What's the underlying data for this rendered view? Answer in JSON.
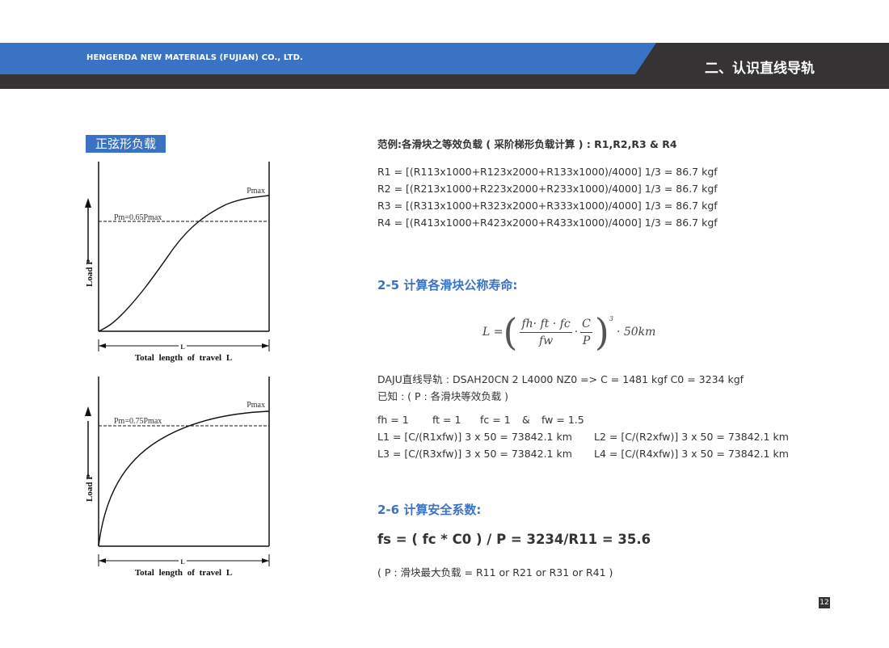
{
  "header": {
    "company": "HENGERDA NEW MATERIALS (FUJIAN) CO., LTD.",
    "section_title": "二、认识直线导轨",
    "colors": {
      "blue": "#3a73c4",
      "dark": "#353334"
    }
  },
  "left": {
    "tag": "正弦形负载",
    "charts": [
      {
        "curve": "sine",
        "pmax_label": "Pmax",
        "pm_label": "Pm=0.65Pmax",
        "y_label": "Load P",
        "dim_label": "L",
        "x_label": "Total length of travel L"
      },
      {
        "curve": "concave",
        "pmax_label": "Pmax",
        "pm_label": "Pm=0.75Pmax",
        "y_label": "Load P",
        "dim_label": "L",
        "x_label": "Total length of travel L"
      }
    ]
  },
  "right": {
    "example_title": "范例:各滑块之等效负载 ( 采阶梯形负载计算 ) : R1,R2,R3 & R4",
    "r_lines": [
      "R1 = [(R113x1000+R123x2000+R133x1000)/4000] 1/3 = 86.7 kgf",
      "R2 = [(R213x1000+R223x2000+R233x1000)/4000] 1/3 = 86.7 kgf",
      "R3 = [(R313x1000+R323x2000+R333x1000)/4000] 1/3 = 86.7 kgf",
      "R4 = [(R413x1000+R423x2000+R433x1000)/4000] 1/3 = 86.7 kgf"
    ],
    "h_life": "2-5  计算各滑块公称寿命:",
    "formula": {
      "lhs": "L =",
      "num1": "fh· ft · fc",
      "den1": "fw",
      "num2": "C",
      "den2": "P",
      "exp": "3",
      "tail": "· 50km"
    },
    "spec_line": "DAJU直线导轨 : DSAH20CN 2 L4000 NZ0 => C = 1481 kgf  C0 = 3234 kgf",
    "known_line": "已知 : ( P : 各滑块等效负载 )",
    "factors": [
      "fh = 1",
      "ft = 1",
      "fc = 1",
      "&",
      "fw = 1.5"
    ],
    "l_lines": [
      [
        "L1 = [C/(R1xfw)] 3 x 50 = 73842.1 km",
        "L2 = [C/(R2xfw)] 3 x 50 = 73842.1 km"
      ],
      [
        "L3 = [C/(R3xfw)] 3 x 50 = 73842.1 km",
        "L4 = [C/(R4xfw)] 3 x 50 = 73842.1 km"
      ]
    ],
    "h_safety": "2-6  计算安全系数:",
    "fs_formula": "fs = ( fc * C0 ) / P = 3234/R11 = 35.6",
    "fs_note": "( P : 滑块最大负载 = R11 or R21 or R31 or R41 )"
  },
  "page_number": "12"
}
